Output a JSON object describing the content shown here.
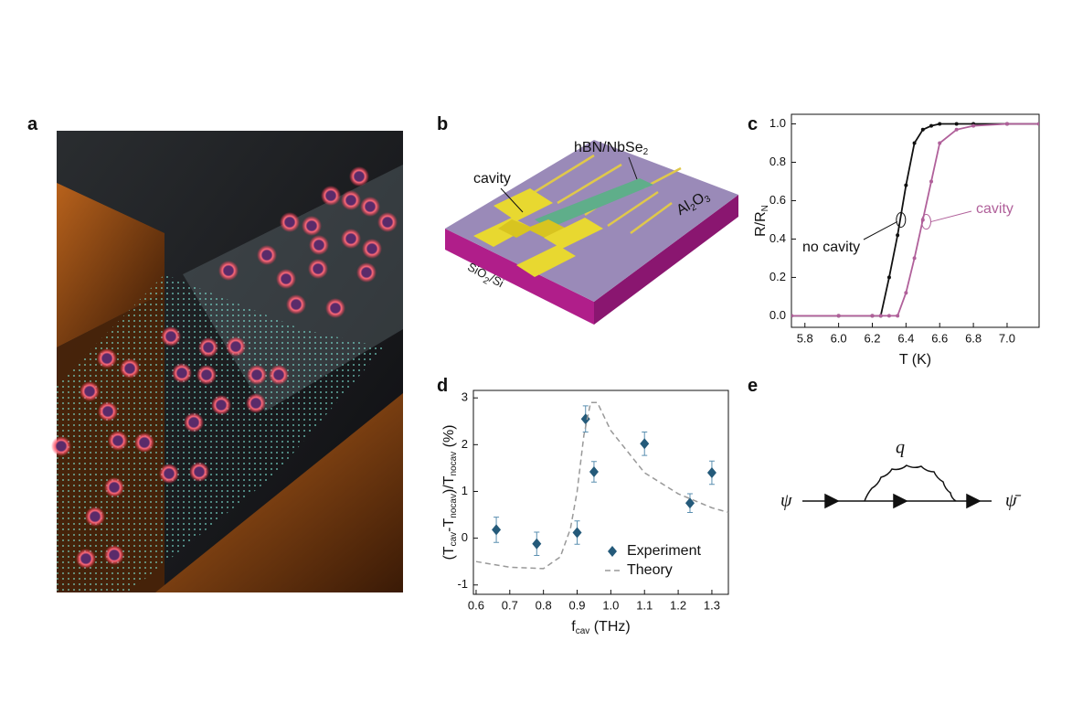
{
  "labels": [
    "a",
    "b",
    "c",
    "d",
    "e"
  ],
  "device": {
    "cavity": "cavity",
    "hbn": [
      {
        "text": "hBN/NbSe"
      },
      {
        "text": "2",
        "sub": true
      }
    ],
    "top": [
      {
        "text": "Al"
      },
      {
        "text": "2",
        "sub": true
      },
      {
        "text": "O"
      },
      {
        "text": "3",
        "sub": true
      }
    ],
    "substrate": [
      {
        "text": "SiO"
      },
      {
        "text": "2",
        "sub": true
      },
      {
        "text": "/Si"
      }
    ]
  },
  "diagram": {
    "in": "ψ",
    "loop": "q",
    "out": "ψ̄"
  },
  "chart_data": [
    {
      "type": "line",
      "xlabel": [
        {
          "text": "T"
        },
        {
          "text": " (K)"
        }
      ],
      "ylabel": [
        {
          "text": "R/R"
        },
        {
          "text": "N",
          "sub": true
        }
      ],
      "x": [
        5.72,
        6.0,
        6.2,
        6.25,
        6.3,
        6.35,
        6.4,
        6.45,
        6.5,
        6.55,
        6.6,
        6.7,
        6.8,
        7.0,
        7.19
      ],
      "series": [
        {
          "name": "no cavity",
          "color": "#111111",
          "values": [
            0,
            0,
            0,
            0,
            0.2,
            0.42,
            0.68,
            0.9,
            0.97,
            0.99,
            1,
            1,
            1,
            1,
            1
          ]
        },
        {
          "name": "cavity",
          "color": "#b0609a",
          "values": [
            0,
            0,
            0,
            0,
            0,
            0,
            0.12,
            0.3,
            0.5,
            0.7,
            0.9,
            0.97,
            0.99,
            1,
            1
          ]
        }
      ],
      "xlim": [
        5.72,
        7.19
      ],
      "ylim": [
        -0.06,
        1.05
      ],
      "xticks": [
        5.8,
        {
          "value": 6.0,
          "label": "6.0"
        },
        6.2,
        6.4,
        6.6,
        6.8,
        {
          "value": 7.0,
          "label": "7.0"
        }
      ],
      "yticks": [
        {
          "value": 0,
          "label": "0.0"
        },
        0.2,
        0.4,
        0.6,
        0.8,
        {
          "value": 1,
          "label": "1.0"
        }
      ]
    },
    {
      "type": "scatter",
      "xlabel": [
        {
          "text": "f"
        },
        {
          "text": "cav",
          "sub": true
        },
        {
          "text": " (THz)"
        }
      ],
      "ylabel": [
        {
          "text": "(T"
        },
        {
          "text": "cav",
          "sub": true
        },
        {
          "text": "-T"
        },
        {
          "text": "nocav",
          "sub": true
        },
        {
          "text": ")/T"
        },
        {
          "text": "nocav",
          "sub": true
        },
        {
          "text": " (%)"
        }
      ],
      "series": [
        {
          "name": "Experiment",
          "color": "#245a7a",
          "x": [
            0.66,
            0.78,
            0.9,
            0.925,
            0.95,
            1.1,
            1.235,
            1.3
          ],
          "values": [
            0.18,
            -0.12,
            0.12,
            2.55,
            1.42,
            2.02,
            0.75,
            1.4
          ],
          "errors": [
            0.27,
            0.25,
            0.25,
            0.28,
            0.22,
            0.25,
            0.2,
            0.25
          ]
        },
        {
          "name": "Theory",
          "color": "#999999",
          "style": "dashed",
          "x": [
            0.6,
            0.7,
            0.8,
            0.85,
            0.88,
            0.9,
            0.92,
            0.94,
            0.96,
            1.0,
            1.1,
            1.2,
            1.3,
            1.35
          ],
          "values": [
            -0.5,
            -0.62,
            -0.65,
            -0.4,
            0.2,
            1.0,
            2.2,
            2.9,
            2.9,
            2.3,
            1.4,
            0.95,
            0.65,
            0.55
          ]
        }
      ],
      "xlim": [
        0.592,
        1.349
      ],
      "ylim": [
        -1.2,
        3.16
      ],
      "xticks": [
        0.6,
        0.7,
        0.8,
        0.9,
        {
          "value": 1.0,
          "label": "1.0"
        },
        1.1,
        1.2,
        1.3
      ],
      "yticks": [
        -1,
        0,
        1,
        2,
        3
      ]
    }
  ]
}
